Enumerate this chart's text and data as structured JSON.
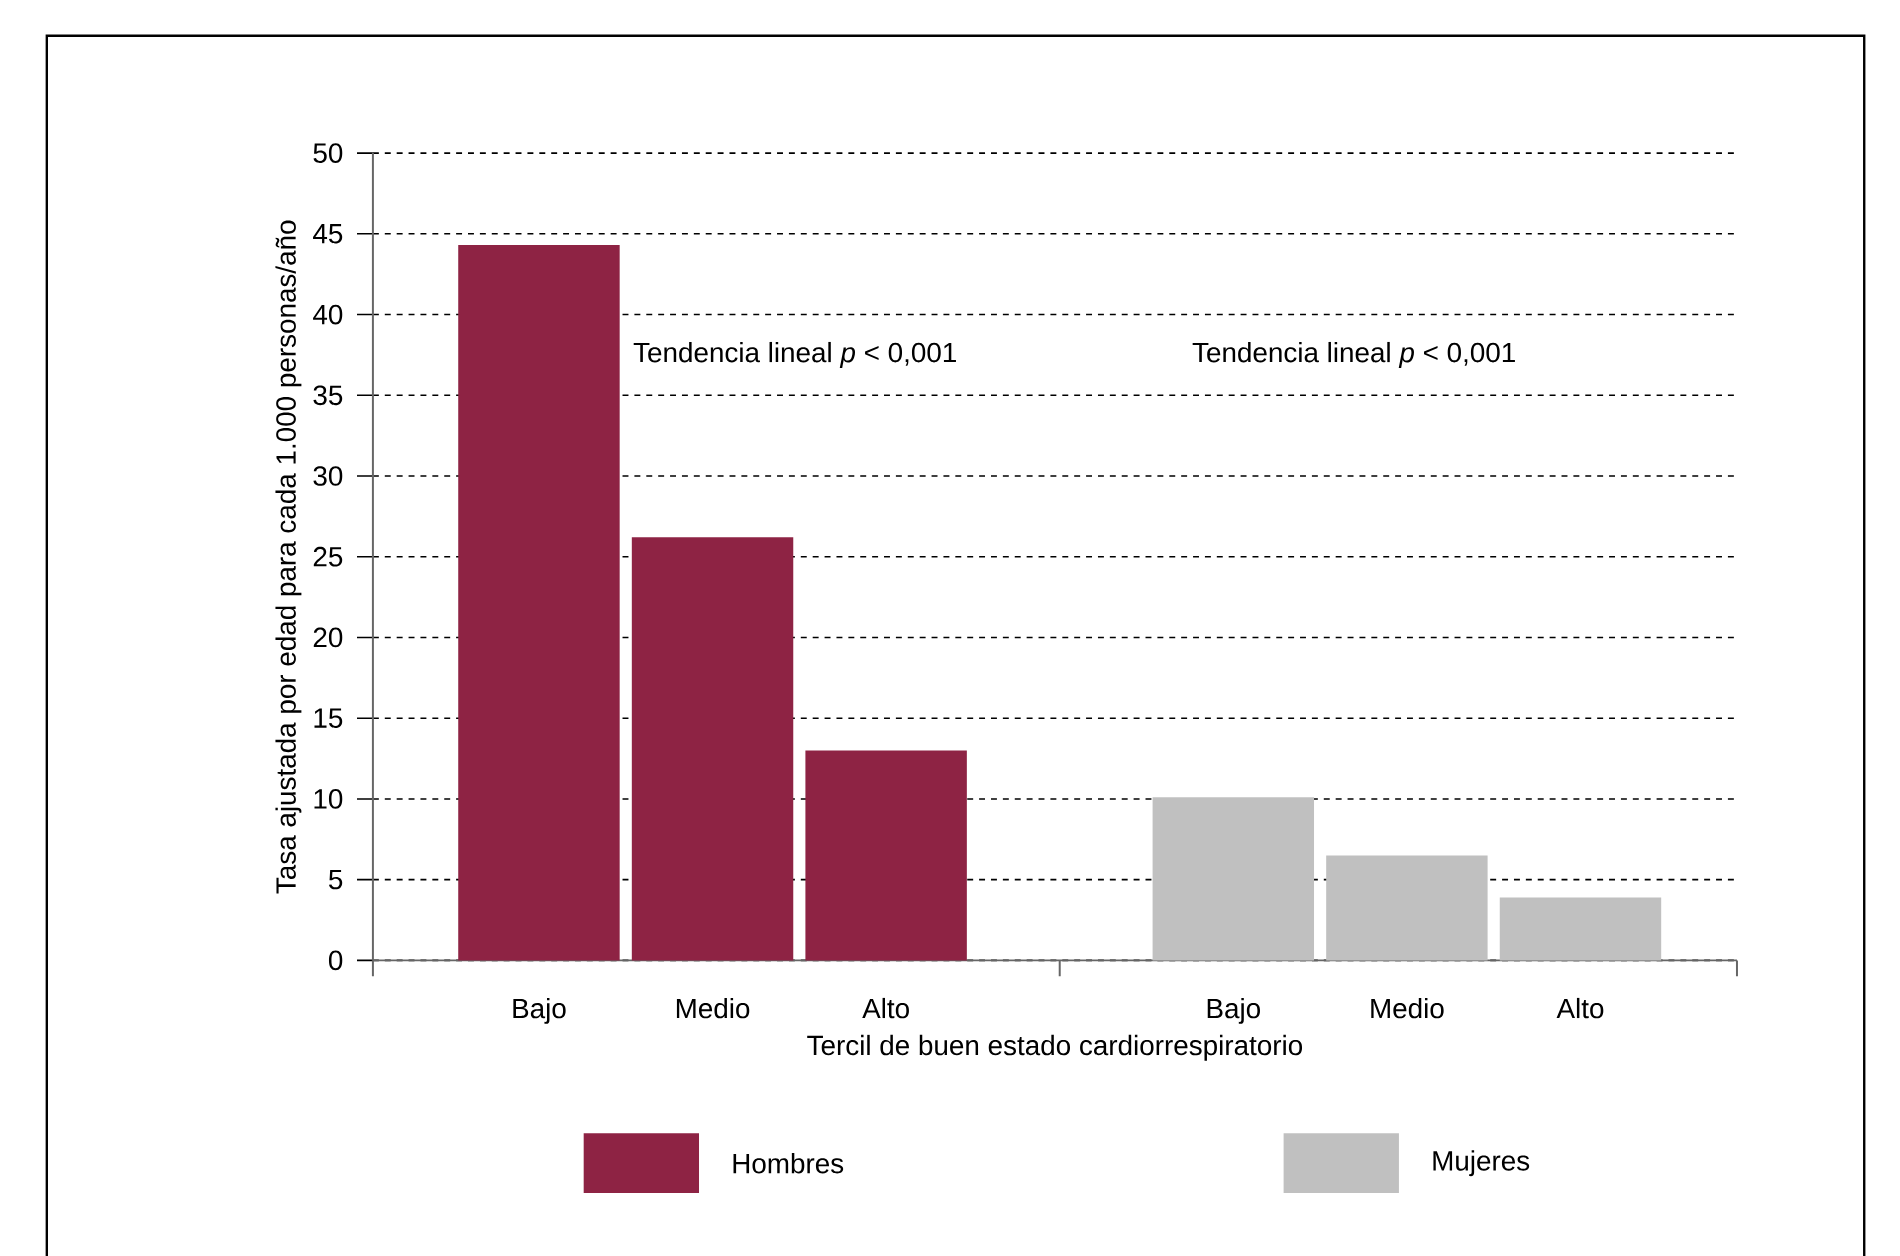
{
  "chart_data": {
    "type": "bar",
    "xlabel": "Tercil de buen estado cardiorrespiratorio",
    "ylabel": "Tasa ajustada por edad para cada 1.000 personas/año",
    "categories": [
      "Bajo",
      "Medio",
      "Alto",
      null,
      "Bajo",
      "Medio",
      "Alto"
    ],
    "series": [
      {
        "name": "Hombres",
        "color": "#8e2344",
        "values": [
          44.3,
          26.2,
          13.0,
          null,
          null,
          null,
          null
        ]
      },
      {
        "name": "Mujeres",
        "color": "#c0c0c0",
        "values": [
          null,
          null,
          null,
          null,
          10.1,
          6.5,
          3.9
        ]
      }
    ],
    "annotations": [
      "Tendencia lineal *p* < 0,001",
      "Tendencia lineal *p* < 0,001"
    ],
    "ylim": [
      0,
      50
    ],
    "yticks": [
      0,
      5,
      10,
      15,
      20,
      25,
      30,
      35,
      40,
      45,
      50
    ],
    "grid": "y",
    "legend": "bottom"
  }
}
